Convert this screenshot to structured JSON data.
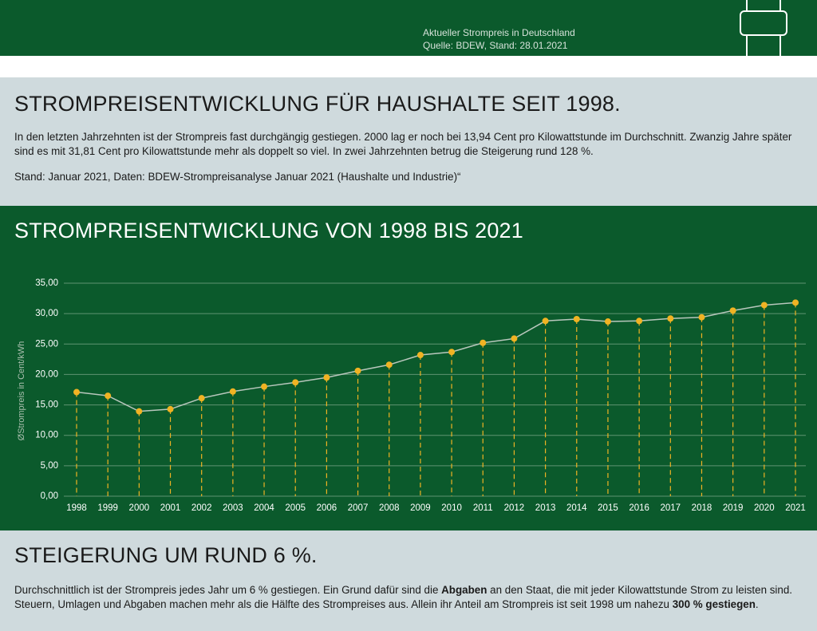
{
  "header": {
    "line_1": "Aktueller Strompreis in Deutschland",
    "line_2": "Quelle: BDEW, Stand: 28.01.2021"
  },
  "section_1": {
    "title": "STROMPREISENTWICKLUNG FÜR HAUSHALTE SEIT 1998.",
    "paragraph": "In den letzten Jahrzehnten ist der Strompreis fast durchgängig gestiegen. 2000 lag er noch bei 13,94 Cent pro Kilowattstunde im Durchschnitt. Zwanzig Jahre später sind es mit 31,81 Cent pro Kilowattstunde mehr als doppelt so viel. In zwei Jahrzehnten betrug die Steigerung rund 128 %.",
    "note": "Stand: Januar 2021, Daten: BDEW-Strompreisanalyse Januar 2021 (Haushalte und Industrie)“"
  },
  "chart_data": {
    "type": "line",
    "title": "STROMPREISENTWICKLUNG VON 1998 BIS 2021",
    "y_label": "ØStrompreis in Cent/kWh",
    "categories": [
      "1998",
      "1999",
      "2000",
      "2001",
      "2002",
      "2003",
      "2004",
      "2005",
      "2006",
      "2007",
      "2008",
      "2009",
      "2010",
      "2011",
      "2012",
      "2013",
      "2014",
      "2015",
      "2016",
      "2017",
      "2018",
      "2019",
      "2020",
      "2021"
    ],
    "values": [
      17.1,
      16.5,
      13.94,
      14.3,
      16.1,
      17.2,
      18.0,
      18.7,
      19.5,
      20.6,
      21.6,
      23.2,
      23.7,
      25.2,
      25.9,
      28.8,
      29.1,
      28.7,
      28.8,
      29.2,
      29.4,
      30.5,
      31.4,
      31.81
    ],
    "color": "#f0b323",
    "line_color": "#b9c7bd",
    "ylim": [
      0,
      35
    ],
    "yticks": [
      {
        "value": 0,
        "label": "0,00"
      },
      {
        "value": 5,
        "label": "5,00"
      },
      {
        "value": 10,
        "label": "10,00"
      },
      {
        "value": 15,
        "label": "15,00"
      },
      {
        "value": 20,
        "label": "20,00"
      },
      {
        "value": 25,
        "label": "25,00"
      },
      {
        "value": 30,
        "label": "30,00"
      },
      {
        "value": 35,
        "label": "35,00"
      }
    ],
    "grid": true
  },
  "section_3": {
    "title": "STEIGERUNG UM RUND 6 %.",
    "paragraph": [
      "Durchschnittlich ist der Strompreis jedes Jahr um 6 % gestiegen. Ein Grund dafür sind die ",
      "Abgaben",
      " an den Staat, die mit jeder Kilowattstunde Strom zu leisten sind. Steuern, Umlagen und Abgaben machen mehr als die Hälfte des Strompreises aus. Allein ihr Anteil am Strompreis ist seit 1998 um nahezu ",
      "300 % gestiegen",
      "."
    ]
  }
}
